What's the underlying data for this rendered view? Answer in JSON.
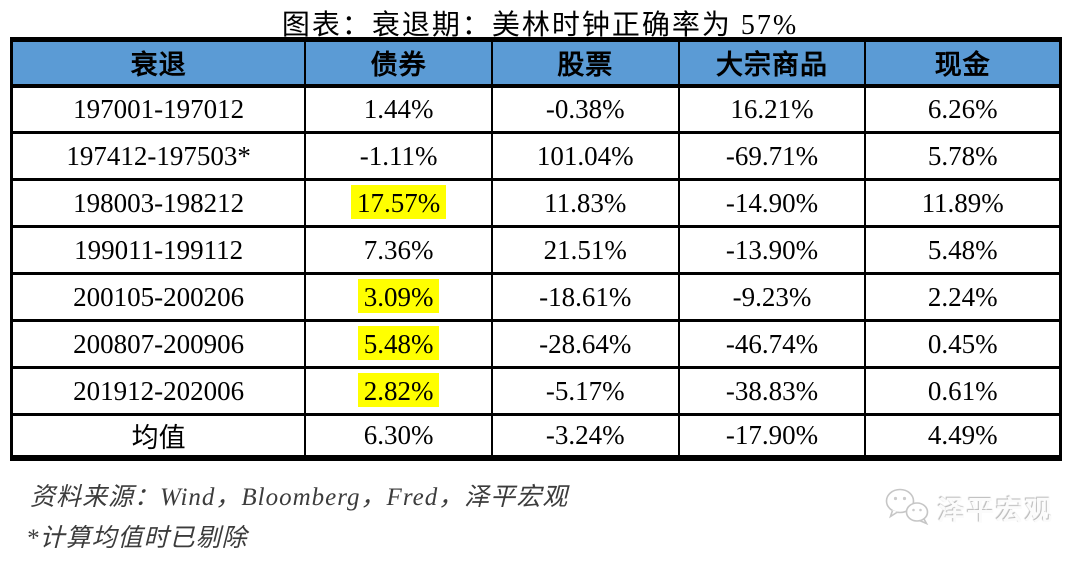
{
  "title": "图表：衰退期：美林时钟正确率为 57%",
  "chart_data": {
    "type": "table",
    "title": "图表：衰退期：美林时钟正确率为 57%",
    "columns": [
      "衰退",
      "债券",
      "股票",
      "大宗商品",
      "现金"
    ],
    "rows": [
      {
        "cells": [
          "197001-197012",
          "1.44%",
          "-0.38%",
          "16.21%",
          "6.26%"
        ],
        "highlight": []
      },
      {
        "cells": [
          "197412-197503*",
          "-1.11%",
          "101.04%",
          "-69.71%",
          "5.78%"
        ],
        "highlight": []
      },
      {
        "cells": [
          "198003-198212",
          "17.57%",
          "11.83%",
          "-14.90%",
          "11.89%"
        ],
        "highlight": [
          1
        ]
      },
      {
        "cells": [
          "199011-199112",
          "7.36%",
          "21.51%",
          "-13.90%",
          "5.48%"
        ],
        "highlight": []
      },
      {
        "cells": [
          "200105-200206",
          "3.09%",
          "-18.61%",
          "-9.23%",
          "2.24%"
        ],
        "highlight": [
          1
        ]
      },
      {
        "cells": [
          "200807-200906",
          "5.48%",
          "-28.64%",
          "-46.74%",
          "0.45%"
        ],
        "highlight": [
          1
        ]
      },
      {
        "cells": [
          "201912-202006",
          "2.82%",
          "-5.17%",
          "-38.83%",
          "0.61%"
        ],
        "highlight": [
          1
        ]
      },
      {
        "cells": [
          "均值",
          "6.30%",
          "-3.24%",
          "-17.90%",
          "4.49%"
        ],
        "highlight": []
      }
    ],
    "legend_position": "none",
    "grid": true
  },
  "footnotes": {
    "source": "资料来源：Wind，Bloomberg，Fred，泽平宏观",
    "asterisk": "*计算均值时已剔除"
  },
  "watermark": {
    "icon": "wechat-chat-bubbles-icon",
    "text": "泽平宏观"
  },
  "colors": {
    "header_bg": "#5B9BD5",
    "header_text": "#000000",
    "highlight": "#FFFF00",
    "border": "#000000"
  }
}
